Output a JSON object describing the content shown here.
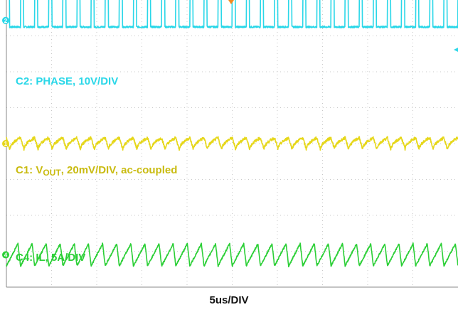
{
  "chart_data": {
    "type": "line",
    "title": "",
    "xlabel": "5us/DIV",
    "xlim": [
      0,
      50
    ],
    "grid": true,
    "divisions": {
      "x": 10,
      "y": 8
    },
    "series": [
      {
        "name": "C2: PHASE, 10V/DIV",
        "channel": "C2",
        "label_prefix": "C2: PHASE, 10V/DIV",
        "label_sub": "",
        "label_suffix": "",
        "waveform": "pulse",
        "periods_per_div": 3.2,
        "duty": 0.22,
        "amplitude_div": 1.0,
        "offset_div": 3.25,
        "color": "#2ad7e8"
      },
      {
        "name": "C1: VOUT, 20mV/DIV, ac-coupled",
        "channel": "C1",
        "label_prefix": "C1: V",
        "label_sub": "OUT",
        "label_suffix": ", 20mV/DIV, ac-coupled",
        "waveform": "ripple",
        "periods_per_div": 3.2,
        "amplitude_div": 0.32,
        "offset_div": 0.0,
        "color": "#e6d71a"
      },
      {
        "name": "C4: IL, 5A/DIV",
        "channel": "C4",
        "label_prefix": "C4: IL, 5A/DIV",
        "label_sub": "",
        "label_suffix": "",
        "waveform": "sawtooth",
        "periods_per_div": 3.2,
        "amplitude_div": 0.62,
        "offset_div": -3.1,
        "color": "#2bcf36"
      }
    ]
  },
  "markers": {
    "c2": "2",
    "c1": "1",
    "c4": "4"
  },
  "colors": {
    "grid": "#c8c8c8",
    "frame": "#888888",
    "trigger": "#f28a1e"
  }
}
